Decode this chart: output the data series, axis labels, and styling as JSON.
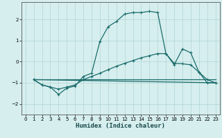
{
  "xlabel": "Humidex (Indice chaleur)",
  "bg_color": "#d6eeee",
  "grid_color": "#b8d8d8",
  "line_color": "#1a6b6b",
  "xlim": [
    -0.5,
    23.5
  ],
  "ylim": [
    -2.5,
    2.8
  ],
  "xticks": [
    0,
    1,
    2,
    3,
    4,
    5,
    6,
    7,
    8,
    9,
    10,
    11,
    12,
    13,
    14,
    15,
    16,
    17,
    18,
    19,
    20,
    21,
    22,
    23
  ],
  "yticks": [
    -2,
    -1,
    0,
    1,
    2
  ],
  "curve1_x": [
    1,
    2,
    3,
    4,
    5,
    6,
    7,
    8,
    9,
    10,
    11,
    12,
    13,
    14,
    15,
    16,
    17,
    18,
    19,
    20,
    21,
    22,
    23
  ],
  "curve1_y": [
    -0.85,
    -1.1,
    -1.2,
    -1.55,
    -1.25,
    -1.15,
    -0.7,
    -0.55,
    0.95,
    1.65,
    1.9,
    2.25,
    2.32,
    2.32,
    2.38,
    2.32,
    0.38,
    -0.15,
    0.6,
    0.42,
    -0.5,
    -1.0,
    -1.0
  ],
  "curve2_x": [
    1,
    2,
    3,
    4,
    5,
    6,
    7,
    8,
    9,
    10,
    11,
    12,
    13,
    14,
    15,
    16,
    17,
    18,
    19,
    20,
    21,
    22,
    23
  ],
  "curve2_y": [
    -0.85,
    -1.1,
    -1.2,
    -1.3,
    -1.2,
    -1.1,
    -0.85,
    -0.7,
    -0.55,
    -0.38,
    -0.22,
    -0.08,
    0.05,
    0.18,
    0.28,
    0.38,
    0.38,
    -0.08,
    -0.1,
    -0.15,
    -0.5,
    -0.85,
    -1.0
  ],
  "curve3_x": [
    1,
    23
  ],
  "curve3_y": [
    -0.85,
    -0.85
  ],
  "curve4_x": [
    1,
    23
  ],
  "curve4_y": [
    -0.85,
    -1.0
  ]
}
